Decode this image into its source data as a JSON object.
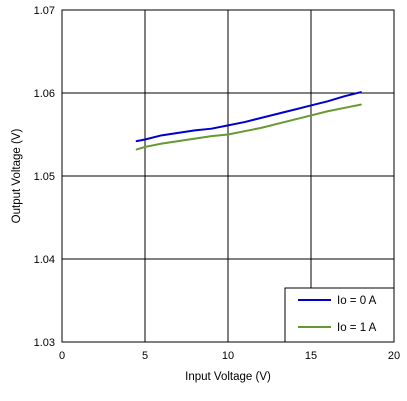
{
  "chart_data": {
    "type": "line",
    "title": "",
    "xlabel": "Input Voltage (V)",
    "ylabel": "Output Voltage (V)",
    "xlim": [
      0,
      20
    ],
    "ylim": [
      1.03,
      1.07
    ],
    "x_ticks": [
      "0",
      "5",
      "10",
      "15",
      "20"
    ],
    "y_ticks": [
      "1.03",
      "1.04",
      "1.05",
      "1.06",
      "1.07"
    ],
    "grid": true,
    "legend_position": "bottom-right",
    "series": [
      {
        "name": "Io = 0 A",
        "color": "#0000CC",
        "x": [
          4.5,
          5,
          6,
          7,
          8,
          9,
          10,
          11,
          12,
          13,
          14,
          15,
          16,
          17,
          18
        ],
        "y": [
          1.0542,
          1.0544,
          1.0549,
          1.0552,
          1.0555,
          1.0557,
          1.0561,
          1.0565,
          1.057,
          1.0575,
          1.058,
          1.0585,
          1.059,
          1.0596,
          1.0601
        ]
      },
      {
        "name": "Io = 1 A",
        "color": "#669933",
        "x": [
          4.5,
          5,
          6,
          7,
          8,
          9,
          10,
          11,
          12,
          13,
          14,
          15,
          16,
          17,
          18
        ],
        "y": [
          1.0532,
          1.0535,
          1.0539,
          1.0542,
          1.0545,
          1.0548,
          1.055,
          1.0554,
          1.0558,
          1.0563,
          1.0568,
          1.0573,
          1.0578,
          1.0582,
          1.0586
        ]
      }
    ]
  }
}
